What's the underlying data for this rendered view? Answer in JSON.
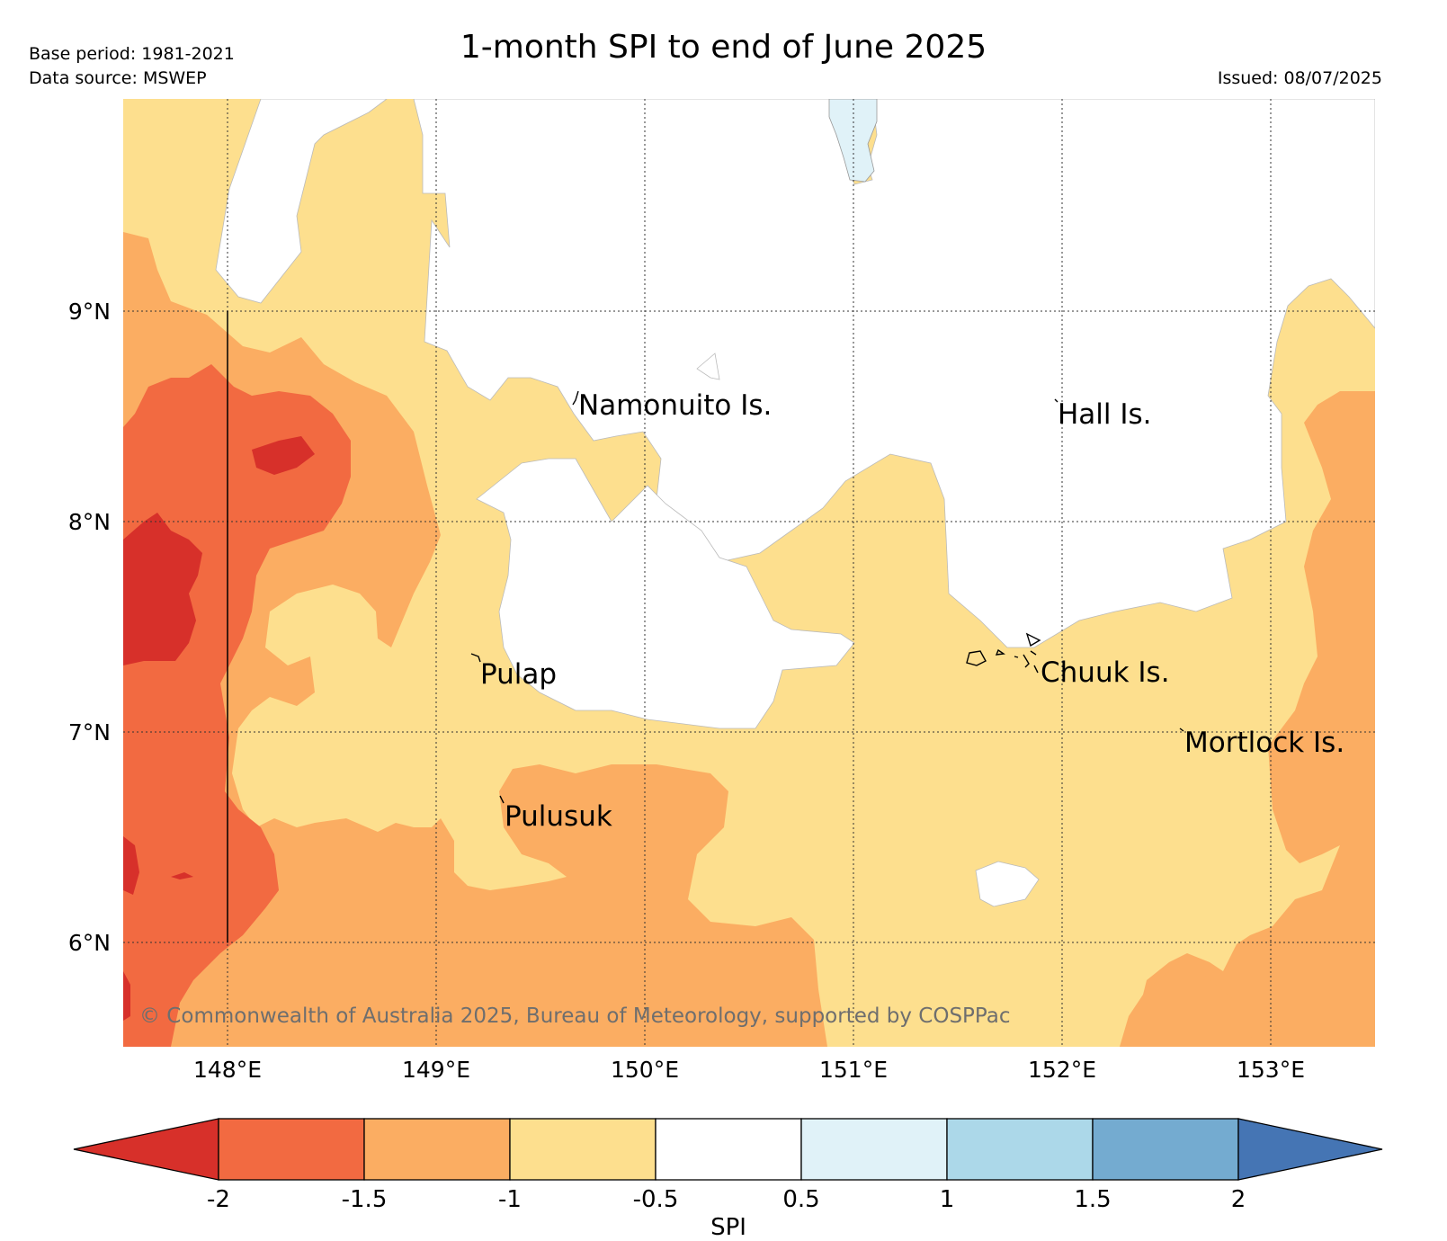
{
  "header": {
    "title": "1-month SPI to end of June 2025",
    "base_period": "Base period: 1981-2021",
    "data_source": "Data source: MSWEP",
    "issued": "Issued: 08/07/2025"
  },
  "map": {
    "lat_labels": [
      "9°N",
      "8°N",
      "7°N",
      "6°N"
    ],
    "lon_labels": [
      "148°E",
      "149°E",
      "150°E",
      "151°E",
      "152°E",
      "153°E"
    ],
    "places": [
      "Namonuito Is.",
      "Hall Is.",
      "Pulap",
      "Chuuk Is.",
      "Mortlock Is.",
      "Pulusuk"
    ],
    "copyright": "© Commonwealth of Australia 2025, Bureau of Meteorology, supported by COSPPac"
  },
  "legend": {
    "label": "SPI",
    "ticks": [
      "-2",
      "-1.5",
      "-1",
      "-0.5",
      "0.5",
      "1",
      "1.5",
      "2"
    ],
    "colors": [
      "#d7302a",
      "#f26a41",
      "#fbad62",
      "#fddf8e",
      "#ffffff",
      "#e0f2f8",
      "#acd8e9",
      "#74abd0",
      "#4575b4"
    ]
  }
}
